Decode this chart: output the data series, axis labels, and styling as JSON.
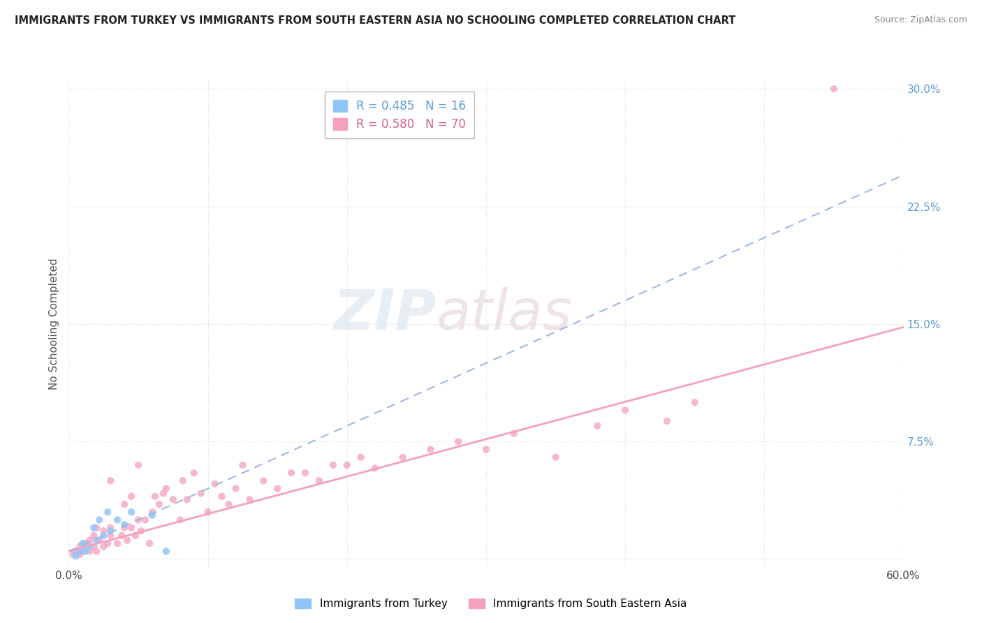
{
  "title": "IMMIGRANTS FROM TURKEY VS IMMIGRANTS FROM SOUTH EASTERN ASIA NO SCHOOLING COMPLETED CORRELATION CHART",
  "source": "Source: ZipAtlas.com",
  "ylabel": "No Schooling Completed",
  "xlim": [
    0.0,
    0.6
  ],
  "ylim": [
    -0.005,
    0.305
  ],
  "xticks": [
    0.0,
    0.1,
    0.2,
    0.3,
    0.4,
    0.5,
    0.6
  ],
  "xticklabels": [
    "0.0%",
    "",
    "",
    "",
    "",
    "",
    "60.0%"
  ],
  "yticks": [
    0.0,
    0.075,
    0.15,
    0.225,
    0.3
  ],
  "yticklabels_right": [
    "",
    "7.5%",
    "15.0%",
    "22.5%",
    "30.0%"
  ],
  "turkey_color": "#92c5f7",
  "sea_color": "#f4a0be",
  "turkey_r": 0.485,
  "turkey_n": 16,
  "sea_r": 0.58,
  "sea_n": 70,
  "legend_label_turkey": "Immigrants from Turkey",
  "legend_label_sea": "Immigrants from South Eastern Asia",
  "background_color": "#ffffff",
  "grid_color": "#d8d8e8",
  "turkey_line_color": "#a0b8e0",
  "sea_line_color": "#f4a0be",
  "turkey_scatter_x": [
    0.005,
    0.008,
    0.01,
    0.012,
    0.015,
    0.018,
    0.02,
    0.022,
    0.025,
    0.028,
    0.03,
    0.035,
    0.04,
    0.045,
    0.06,
    0.07
  ],
  "turkey_scatter_y": [
    0.002,
    0.005,
    0.01,
    0.005,
    0.008,
    0.02,
    0.012,
    0.025,
    0.015,
    0.03,
    0.018,
    0.025,
    0.022,
    0.03,
    0.028,
    0.005
  ],
  "sea_scatter_x": [
    0.003,
    0.005,
    0.008,
    0.008,
    0.01,
    0.012,
    0.015,
    0.015,
    0.018,
    0.018,
    0.02,
    0.02,
    0.022,
    0.025,
    0.025,
    0.028,
    0.03,
    0.03,
    0.03,
    0.035,
    0.038,
    0.04,
    0.04,
    0.042,
    0.045,
    0.045,
    0.048,
    0.05,
    0.05,
    0.052,
    0.055,
    0.058,
    0.06,
    0.062,
    0.065,
    0.068,
    0.07,
    0.075,
    0.08,
    0.082,
    0.085,
    0.09,
    0.095,
    0.1,
    0.105,
    0.11,
    0.115,
    0.12,
    0.125,
    0.13,
    0.14,
    0.15,
    0.16,
    0.17,
    0.18,
    0.19,
    0.2,
    0.21,
    0.22,
    0.24,
    0.26,
    0.28,
    0.3,
    0.32,
    0.35,
    0.38,
    0.4,
    0.43,
    0.45,
    0.55
  ],
  "sea_scatter_y": [
    0.003,
    0.005,
    0.003,
    0.008,
    0.005,
    0.01,
    0.005,
    0.012,
    0.008,
    0.015,
    0.005,
    0.02,
    0.012,
    0.008,
    0.018,
    0.01,
    0.015,
    0.02,
    0.05,
    0.01,
    0.015,
    0.02,
    0.035,
    0.012,
    0.02,
    0.04,
    0.015,
    0.025,
    0.06,
    0.018,
    0.025,
    0.01,
    0.03,
    0.04,
    0.035,
    0.042,
    0.045,
    0.038,
    0.025,
    0.05,
    0.038,
    0.055,
    0.042,
    0.03,
    0.048,
    0.04,
    0.035,
    0.045,
    0.06,
    0.038,
    0.05,
    0.045,
    0.055,
    0.055,
    0.05,
    0.06,
    0.06,
    0.065,
    0.058,
    0.065,
    0.07,
    0.075,
    0.07,
    0.08,
    0.065,
    0.085,
    0.095,
    0.088,
    0.1,
    0.3
  ],
  "sea_line_start_x": 0.0,
  "sea_line_start_y": 0.005,
  "sea_line_end_x": 0.6,
  "sea_line_end_y": 0.148,
  "turkey_line_start_x": 0.0,
  "turkey_line_start_y": 0.005,
  "turkey_line_end_x": 0.6,
  "turkey_line_end_y": 0.245
}
